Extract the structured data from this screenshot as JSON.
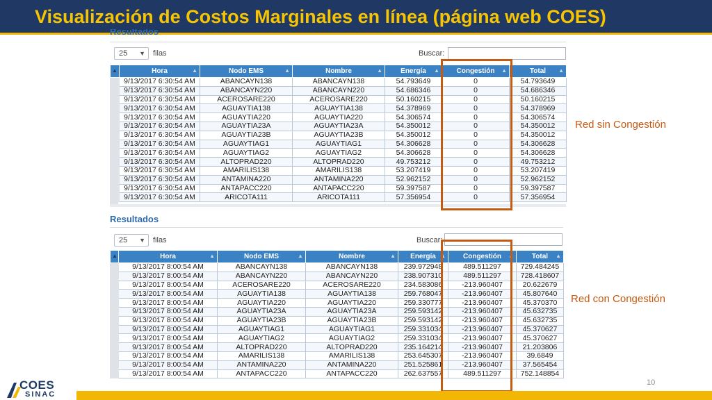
{
  "slide": {
    "title": "Visualización de Costos Marginales en línea (página web COES)",
    "page_number": "10",
    "logo_top": "COES",
    "logo_bottom": "SINAC",
    "label_top": "Red sin Congestión",
    "label_bottom": "Red con Congestión"
  },
  "top_panel": {
    "heading": "Resultados",
    "page_length": "25",
    "length_label": "filas",
    "search_label": "Buscar:",
    "search_value": "",
    "columns": [
      "Hora",
      "Nodo EMS",
      "Nombre",
      "Energía",
      "Congestión",
      "Total"
    ],
    "rows": [
      [
        "9/13/2017 6:30:54 AM",
        "ABANCAYN138",
        "ABANCAYN138",
        "54.793649",
        "0",
        "54.793649"
      ],
      [
        "9/13/2017 6:30:54 AM",
        "ABANCAYN220",
        "ABANCAYN220",
        "54.686346",
        "0",
        "54.686346"
      ],
      [
        "9/13/2017 6:30:54 AM",
        "ACEROSARE220",
        "ACEROSARE220",
        "50.160215",
        "0",
        "50.160215"
      ],
      [
        "9/13/2017 6:30:54 AM",
        "AGUAYTIA138",
        "AGUAYTIA138",
        "54.378969",
        "0",
        "54.378969"
      ],
      [
        "9/13/2017 6:30:54 AM",
        "AGUAYTIA220",
        "AGUAYTIA220",
        "54.306574",
        "0",
        "54.306574"
      ],
      [
        "9/13/2017 6:30:54 AM",
        "AGUAYTIA23A",
        "AGUAYTIA23A",
        "54.350012",
        "0",
        "54.350012"
      ],
      [
        "9/13/2017 6:30:54 AM",
        "AGUAYTIA23B",
        "AGUAYTIA23B",
        "54.350012",
        "0",
        "54.350012"
      ],
      [
        "9/13/2017 6:30:54 AM",
        "AGUAYTIAG1",
        "AGUAYTIAG1",
        "54.306628",
        "0",
        "54.306628"
      ],
      [
        "9/13/2017 6:30:54 AM",
        "AGUAYTIAG2",
        "AGUAYTIAG2",
        "54.306628",
        "0",
        "54.306628"
      ],
      [
        "9/13/2017 6:30:54 AM",
        "ALTOPRAD220",
        "ALTOPRAD220",
        "49.753212",
        "0",
        "49.753212"
      ],
      [
        "9/13/2017 6:30:54 AM",
        "AMARILIS138",
        "AMARILIS138",
        "53.207419",
        "0",
        "53.207419"
      ],
      [
        "9/13/2017 6:30:54 AM",
        "ANTAMINA220",
        "ANTAMINA220",
        "52.962152",
        "0",
        "52.962152"
      ],
      [
        "9/13/2017 6:30:54 AM",
        "ANTAPACC220",
        "ANTAPACC220",
        "59.397587",
        "0",
        "59.397587"
      ],
      [
        "9/13/2017 6:30:54 AM",
        "ARICOTA111",
        "ARICOTA111",
        "57.356954",
        "0",
        "57.356954"
      ]
    ]
  },
  "bottom_panel": {
    "heading": "Resultados",
    "page_length": "25",
    "length_label": "filas",
    "search_label": "Buscar:",
    "search_value": "",
    "columns": [
      "Hora",
      "Nodo EMS",
      "Nombre",
      "Energía",
      "Congestión",
      "Total"
    ],
    "rows": [
      [
        "9/13/2017 8:00:54 AM",
        "ABANCAYN138",
        "ABANCAYN138",
        "239.972948",
        "489.511297",
        "729.484245"
      ],
      [
        "9/13/2017 8:00:54 AM",
        "ABANCAYN220",
        "ABANCAYN220",
        "238.907310",
        "489.511297",
        "728.418607"
      ],
      [
        "9/13/2017 8:00:54 AM",
        "ACEROSARE220",
        "ACEROSARE220",
        "234.583086",
        "-213.960407",
        "20.622679"
      ],
      [
        "9/13/2017 8:00:54 AM",
        "AGUAYTIA138",
        "AGUAYTIA138",
        "259.768047",
        "-213.960407",
        "45.807640"
      ],
      [
        "9/13/2017 8:00:54 AM",
        "AGUAYTIA220",
        "AGUAYTIA220",
        "259.330777",
        "-213.960407",
        "45.370370"
      ],
      [
        "9/13/2017 8:00:54 AM",
        "AGUAYTIA23A",
        "AGUAYTIA23A",
        "259.593142",
        "-213.960407",
        "45.632735"
      ],
      [
        "9/13/2017 8:00:54 AM",
        "AGUAYTIA23B",
        "AGUAYTIA23B",
        "259.593142",
        "-213.960407",
        "45.632735"
      ],
      [
        "9/13/2017 8:00:54 AM",
        "AGUAYTIAG1",
        "AGUAYTIAG1",
        "259.331034",
        "-213.960407",
        "45.370627"
      ],
      [
        "9/13/2017 8:00:54 AM",
        "AGUAYTIAG2",
        "AGUAYTIAG2",
        "259.331034",
        "-213.960407",
        "45.370627"
      ],
      [
        "9/13/2017 8:00:54 AM",
        "ALTOPRAD220",
        "ALTOPRAD220",
        "235.164214",
        "-213.960407",
        "21.203806"
      ],
      [
        "9/13/2017 8:00:54 AM",
        "AMARILIS138",
        "AMARILIS138",
        "253.645307",
        "-213.960407",
        "39.6849"
      ],
      [
        "9/13/2017 8:00:54 AM",
        "ANTAMINA220",
        "ANTAMINA220",
        "251.525861",
        "-213.960407",
        "37.565454"
      ],
      [
        "9/13/2017 8:00:54 AM",
        "ANTAPACC220",
        "ANTAPACC220",
        "262.637557",
        "489.511297",
        "752.148854"
      ]
    ]
  }
}
